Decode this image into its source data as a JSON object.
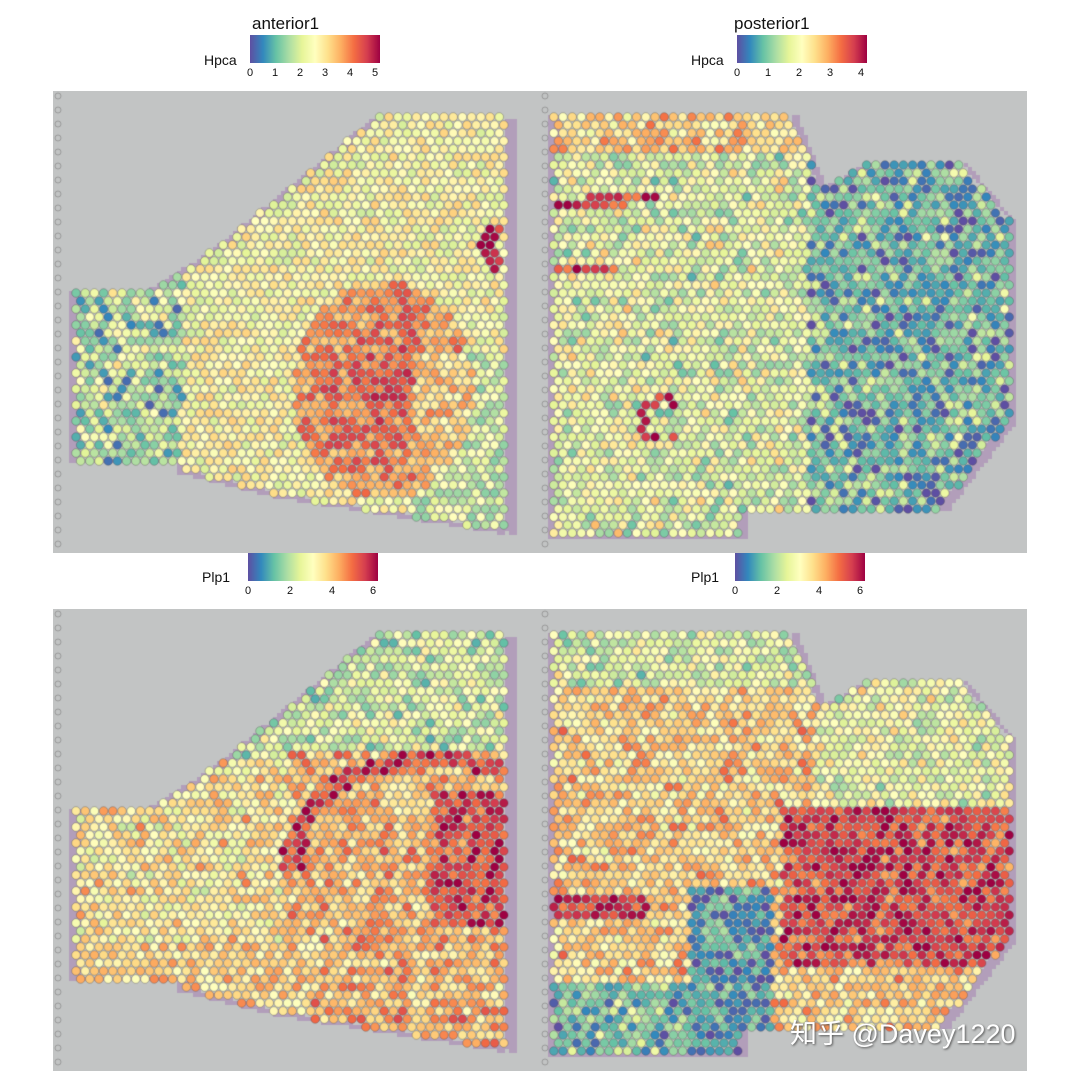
{
  "chart_data": [
    {
      "type": "heatmap",
      "subtype": "spatial-transcriptomics",
      "title": "anterior1",
      "gene": "Hpca",
      "colorbar": {
        "label": "Hpca",
        "ticks": [
          0,
          1,
          2,
          3,
          4,
          5
        ],
        "range": [
          0,
          5.2
        ],
        "palette": "Spectral (reversed)"
      },
      "description": "Sagittal mouse brain section (anterior); high Hpca in striatum-like central region (orange, ~3.5-4) and small red arc at right edge (~5); low expression (blue/purple) in olfactory bulb at left"
    },
    {
      "type": "heatmap",
      "subtype": "spatial-transcriptomics",
      "title": "posterior1",
      "gene": "Hpca",
      "colorbar": {
        "label": "Hpca",
        "ticks": [
          0,
          1,
          2,
          3,
          4
        ],
        "range": [
          0,
          4.2
        ],
        "palette": "Spectral (reversed)"
      },
      "description": "Sagittal mouse brain section (posterior); red arcs in hippocampus (~4), cerebellum at right mostly low (purple/blue, 0-1)"
    },
    {
      "type": "heatmap",
      "subtype": "spatial-transcriptomics",
      "title": "anterior1",
      "gene": "Plp1",
      "colorbar": {
        "label": "Plp1",
        "ticks": [
          0,
          2,
          4,
          6
        ],
        "range": [
          0,
          6.3
        ],
        "palette": "Spectral (reversed)"
      },
      "description": "Anterior section; high Plp1 (red, ~5-6) along white-matter tracts and right side; cortex at top lower (blue/green)"
    },
    {
      "type": "heatmap",
      "subtype": "spatial-transcriptomics",
      "title": "posterior1",
      "gene": "Plp1",
      "colorbar": {
        "label": "Plp1",
        "ticks": [
          0,
          2,
          4,
          6
        ],
        "range": [
          0,
          6.3
        ],
        "palette": "Spectral (reversed)"
      },
      "description": "Posterior section; high Plp1 (red, ~6) in brainstem/cerebellar white matter; low (purple) in hippocampus region lower-middle"
    }
  ],
  "panels": {
    "top_left": {
      "title": "anterior1",
      "legend_label": "Hpca",
      "ticks": [
        "0",
        "1",
        "2",
        "3",
        "4",
        "5"
      ]
    },
    "top_right": {
      "title": "posterior1",
      "legend_label": "Hpca",
      "ticks": [
        "0",
        "1",
        "2",
        "3",
        "4"
      ]
    },
    "bottom_left": {
      "title": "",
      "legend_label": "Plp1",
      "ticks": [
        "0",
        "2",
        "4",
        "6"
      ]
    },
    "bottom_right": {
      "title": "",
      "legend_label": "Plp1",
      "ticks": [
        "0",
        "2",
        "4",
        "6"
      ]
    }
  },
  "palette": [
    "#5e4fa2",
    "#3288bd",
    "#66c2a5",
    "#abdda4",
    "#e6f598",
    "#ffffbf",
    "#fee08b",
    "#fdae61",
    "#f46d43",
    "#d53e4f",
    "#9e0142"
  ],
  "watermark": "知乎 @Davey1220"
}
